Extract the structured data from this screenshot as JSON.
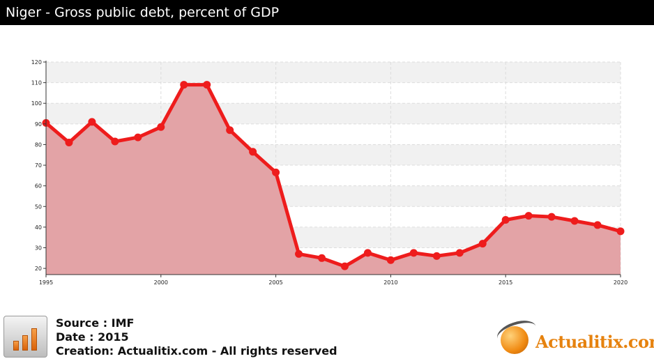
{
  "header": {
    "title": "Niger - Gross public debt, percent of GDP"
  },
  "footer": {
    "source": "Source : IMF",
    "date": "Date : 2015",
    "creation": "Creation: Actualitix.com - All rights reserved",
    "brand": "Actualitix.com"
  },
  "chart_data": {
    "type": "area",
    "title": "Niger - Gross public debt, percent of GDP",
    "xlabel": "",
    "ylabel": "",
    "x": [
      1995,
      1996,
      1997,
      1998,
      1999,
      2000,
      2001,
      2002,
      2003,
      2004,
      2005,
      2006,
      2007,
      2008,
      2009,
      2010,
      2011,
      2012,
      2013,
      2014,
      2015,
      2016,
      2017,
      2018,
      2019,
      2020
    ],
    "series": [
      {
        "name": "",
        "values": [
          90.5,
          81,
          91,
          81.5,
          83.5,
          88.5,
          109,
          109,
          87,
          76.5,
          66.5,
          27,
          25,
          21,
          27.5,
          24,
          27.5,
          26,
          27.5,
          32,
          43.5,
          45.5,
          45,
          43,
          41,
          38
        ]
      }
    ],
    "xlim": [
      1995,
      2020
    ],
    "ylim": [
      17,
      120
    ],
    "xticks": [
      "1995",
      "2000",
      "2005",
      "2010",
      "2015",
      "2020"
    ],
    "yticks": [
      "20",
      "30",
      "40",
      "50",
      "60",
      "70",
      "80",
      "90",
      "100",
      "110",
      "120"
    ],
    "grid": true,
    "colors": {
      "line": "#ee1c1c",
      "fill": "#e3a3a6",
      "marker": "#ee1c1c"
    }
  }
}
